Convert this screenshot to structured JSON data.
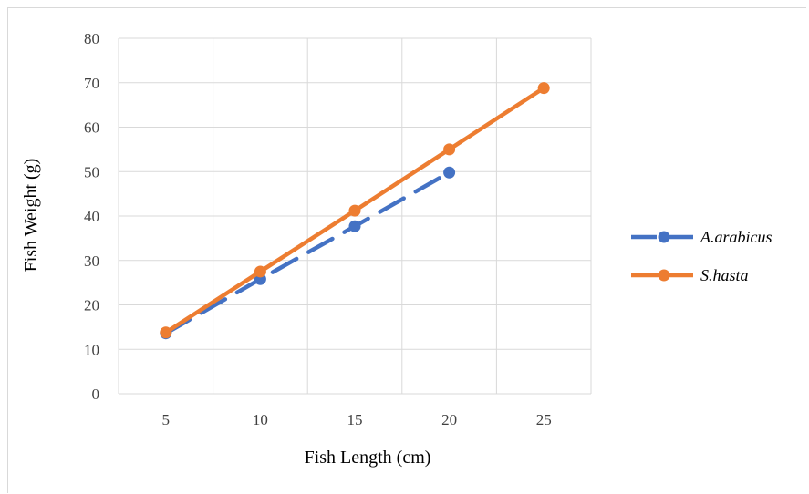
{
  "chart_data": {
    "type": "line",
    "title": "",
    "xlabel": "Fish Length (cm)",
    "ylabel": "Fish Weight (g)",
    "categories": [
      "5",
      "10",
      "15",
      "20",
      "25"
    ],
    "ylim": [
      0,
      80
    ],
    "y_ticks": [
      "0",
      "10",
      "20",
      "30",
      "40",
      "50",
      "60",
      "70",
      "80"
    ],
    "grid": true,
    "legend_position": "right",
    "series": [
      {
        "name": "A.arabicus",
        "values": [
          13.6,
          25.8,
          37.7,
          49.8,
          null
        ],
        "color": "#4472c4",
        "dash": "dashed"
      },
      {
        "name": "S.hasta",
        "values": [
          13.8,
          27.5,
          41.2,
          55.0,
          68.8
        ],
        "color": "#ed7d31",
        "dash": "solid"
      }
    ]
  }
}
